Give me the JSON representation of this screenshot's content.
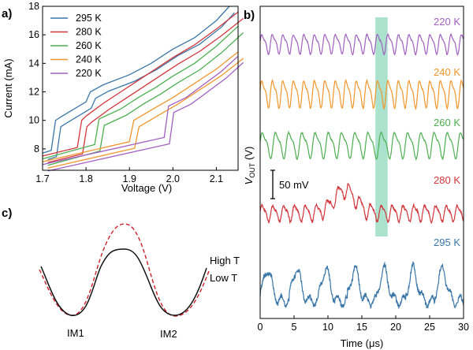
{
  "figure": {
    "panel_labels": [
      "a)",
      "b)",
      "c)"
    ]
  },
  "colors": {
    "295 K": "#3a77a8",
    "280 K": "#d2363b",
    "260 K": "#4caf50",
    "240 K": "#f0962a",
    "220 K": "#a160c0",
    "highlight": "#8fd8bc",
    "high_t": "#111111",
    "low_t": "#d0202a"
  },
  "chart_data": [
    {
      "type": "line",
      "panel": "a)",
      "xlabel": "Voltage (V)",
      "ylabel": "Current (mA)",
      "xlim": [
        1.7,
        2.15
      ],
      "ylim": [
        6.5,
        18
      ],
      "x_ticks": [
        "1.7",
        "1.8",
        "1.9",
        "2.0",
        "2.1"
      ],
      "y_ticks": [
        "8",
        "10",
        "12",
        "14",
        "16",
        "18"
      ],
      "legend_position": "top-left",
      "series": [
        {
          "name": "295 K",
          "x": [
            1.7,
            1.72,
            1.73,
            1.74,
            1.8,
            1.81,
            1.84,
            1.9,
            1.95,
            2.0,
            2.05,
            2.1,
            2.13
          ],
          "y": [
            7.7,
            7.9,
            10.0,
            10.2,
            11.3,
            12.0,
            12.5,
            13.2,
            14.0,
            15.0,
            15.8,
            17.0,
            18.0
          ]
        },
        {
          "name": "280 K",
          "x": [
            1.7,
            1.78,
            1.79,
            1.8,
            1.84,
            1.88,
            1.92,
            1.96,
            2.0,
            2.05,
            2.1,
            2.15
          ],
          "y": [
            7.5,
            8.1,
            10.0,
            10.3,
            11.2,
            12.0,
            12.8,
            13.6,
            14.4,
            15.3,
            16.4,
            17.6
          ]
        },
        {
          "name": "260 K",
          "x": [
            1.7,
            1.82,
            1.83,
            1.88,
            1.92,
            1.96,
            2.0,
            2.05,
            2.1,
            2.15
          ],
          "y": [
            7.3,
            8.3,
            10.1,
            10.8,
            11.6,
            12.3,
            13.1,
            14.0,
            15.2,
            16.6
          ]
        },
        {
          "name": "240 K",
          "x": [
            1.7,
            1.9,
            1.91,
            1.96,
            2.0,
            2.05,
            2.1,
            2.15
          ],
          "y": [
            7.1,
            8.5,
            10.0,
            10.9,
            11.6,
            12.6,
            13.6,
            14.8
          ]
        },
        {
          "name": "220 K",
          "x": [
            1.7,
            1.98,
            1.99,
            2.03,
            2.07,
            2.11,
            2.15
          ],
          "y": [
            6.9,
            8.8,
            11.0,
            11.6,
            12.5,
            13.4,
            14.5
          ]
        }
      ]
    },
    {
      "type": "line",
      "panel": "b)",
      "xlabel": "Time (μs)",
      "ylabel_main": "V",
      "ylabel_sub": "OUT",
      "ylabel_unit": " (V)",
      "xlim": [
        0,
        30
      ],
      "x_ticks": [
        "0",
        "5",
        "10",
        "15",
        "20",
        "25",
        "30"
      ],
      "scale_bar_label": "50 mV",
      "highlight_span": [
        17,
        18.8
      ],
      "series": [
        {
          "name": "220 K",
          "period_us": 1.55,
          "amplitude_mV": 30,
          "noise": "low"
        },
        {
          "name": "240 K",
          "period_us": 1.55,
          "amplitude_mV": 42,
          "noise": "low"
        },
        {
          "name": "260 K",
          "period_us": 1.95,
          "amplitude_mV": 40,
          "noise": "low"
        },
        {
          "name": "280 K",
          "period_us": 1.6,
          "amplitude_mV": 25,
          "burst_center_us": 12.5,
          "burst_mV": 40,
          "noise": "medium"
        },
        {
          "name": "295 K",
          "period_us": 4.3,
          "amplitude_mV": 70,
          "noise": "high"
        }
      ]
    }
  ],
  "panel_c": {
    "labels": {
      "high_t": "High T",
      "low_t": "Low T",
      "im1": "IM1",
      "im2": "IM2"
    }
  }
}
